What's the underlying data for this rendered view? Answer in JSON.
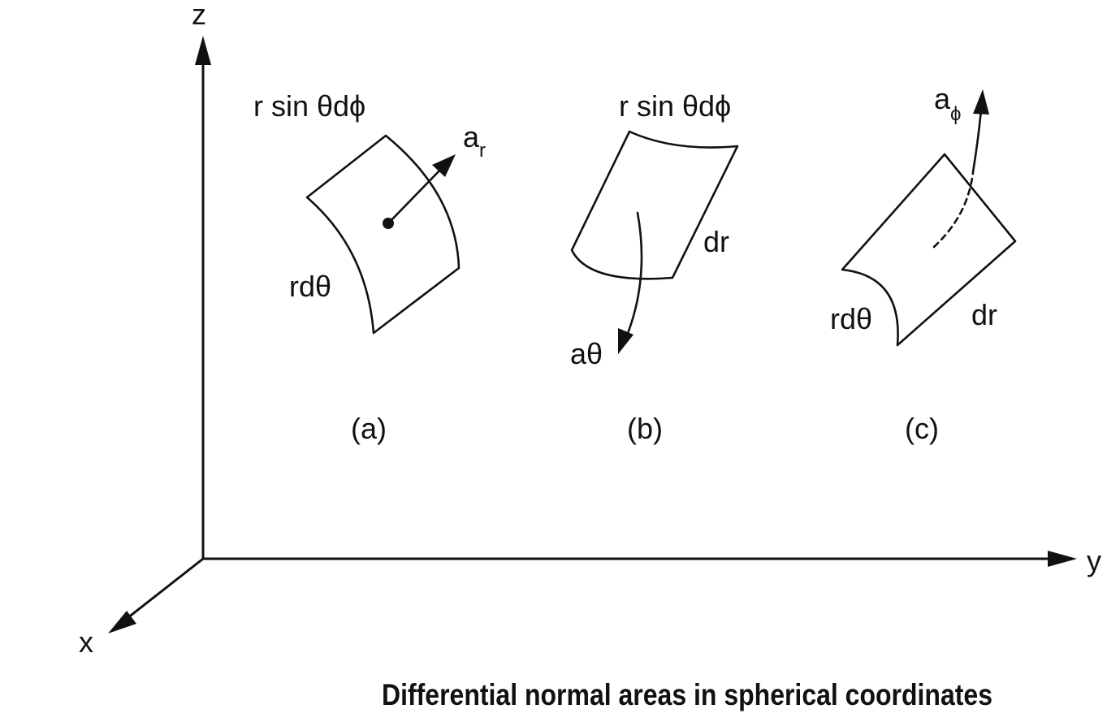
{
  "axes": {
    "z": "z",
    "y": "y",
    "x": "x"
  },
  "panel_a": {
    "top_label": "r sin θdϕ",
    "side_label": "rdθ",
    "vector_base": "a",
    "vector_sub": "r",
    "caption": "(a)"
  },
  "panel_b": {
    "top_label": "r sin θdϕ",
    "side_label": "dr",
    "vector_label": "aθ",
    "caption": "(b)"
  },
  "panel_c": {
    "side_label_left": "rdθ",
    "side_label_right": "dr",
    "vector_base": "a",
    "vector_sub": "ϕ",
    "caption": "(c)"
  },
  "figure_caption": "Differential normal areas in spherical coordinates",
  "colors": {
    "ink": "#111111",
    "background": "#ffffff"
  }
}
